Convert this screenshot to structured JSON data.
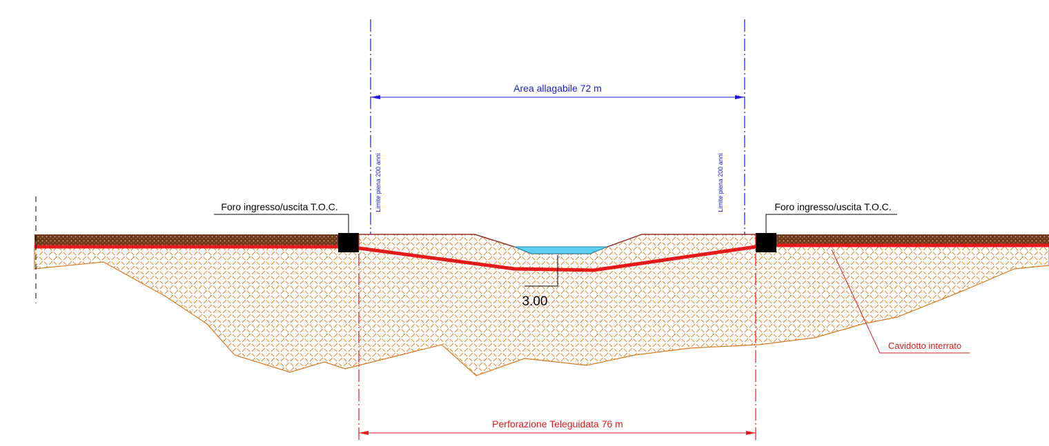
{
  "dimensions": {
    "flood_area": "Area allagabile 72 m",
    "drilling": "Perforazione Teleguidata 76 m",
    "depth": "3.00"
  },
  "labels": {
    "flood_limit_left": "Limite piena 200 anni",
    "flood_limit_right": "Limite piena 200 anni",
    "entry_left": "Foro ingresso/uscita T.O.C.",
    "entry_right": "Foro ingresso/uscita T.O.C.",
    "cable": "Cavidotto interrato"
  }
}
